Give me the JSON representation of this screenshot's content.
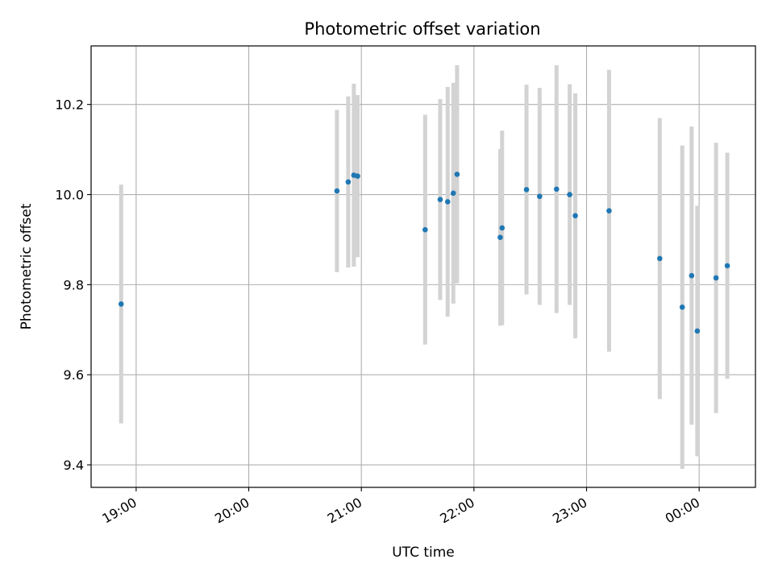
{
  "chart_data": {
    "type": "scatter",
    "title": "Photometric offset variation",
    "xlabel": "UTC time",
    "ylabel": "Photometric offset",
    "x_type": "time",
    "x_ticks": [
      "19:00",
      "20:00",
      "21:00",
      "22:00",
      "23:00",
      "00:00"
    ],
    "y_ticks": [
      "9.4",
      "9.6",
      "9.8",
      "10.0",
      "10.2"
    ],
    "xlim": [
      "18:36",
      "00:30"
    ],
    "ylim": [
      9.35,
      10.33
    ],
    "grid": true,
    "marker_color": "#1f77b4",
    "errorbar_color": "#d3d3d3",
    "points": [
      {
        "t": "18:52",
        "y": 9.757,
        "err": 0.265
      },
      {
        "t": "20:47",
        "y": 10.008,
        "err": 0.18
      },
      {
        "t": "20:53",
        "y": 10.028,
        "err": 0.19
      },
      {
        "t": "20:56",
        "y": 10.043,
        "err": 0.203
      },
      {
        "t": "20:58",
        "y": 10.041,
        "err": 0.18
      },
      {
        "t": "21:34",
        "y": 9.922,
        "err": 0.255
      },
      {
        "t": "21:42",
        "y": 9.989,
        "err": 0.223
      },
      {
        "t": "21:46",
        "y": 9.984,
        "err": 0.255
      },
      {
        "t": "21:49",
        "y": 10.003,
        "err": 0.245
      },
      {
        "t": "21:51",
        "y": 10.045,
        "err": 0.242
      },
      {
        "t": "22:14",
        "y": 9.905,
        "err": 0.196
      },
      {
        "t": "22:15",
        "y": 9.926,
        "err": 0.216
      },
      {
        "t": "22:28",
        "y": 10.011,
        "err": 0.233
      },
      {
        "t": "22:35",
        "y": 9.996,
        "err": 0.241
      },
      {
        "t": "22:44",
        "y": 10.012,
        "err": 0.275
      },
      {
        "t": "22:51",
        "y": 10.0,
        "err": 0.245
      },
      {
        "t": "22:54",
        "y": 9.953,
        "err": 0.272
      },
      {
        "t": "23:12",
        "y": 9.964,
        "err": 0.313
      },
      {
        "t": "23:39",
        "y": 9.858,
        "err": 0.312
      },
      {
        "t": "23:51",
        "y": 9.75,
        "err": 0.359
      },
      {
        "t": "23:56",
        "y": 9.82,
        "err": 0.331
      },
      {
        "t": "23:59",
        "y": 9.697,
        "err": 0.278
      },
      {
        "t": "00:09",
        "y": 9.815,
        "err": 0.3
      },
      {
        "t": "00:15",
        "y": 9.842,
        "err": 0.251
      }
    ]
  }
}
